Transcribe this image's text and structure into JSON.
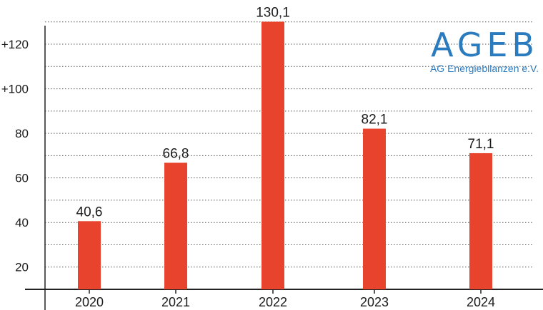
{
  "chart_data": {
    "type": "bar",
    "categories": [
      "2020",
      "2021",
      "2022",
      "2023",
      "2024"
    ],
    "values": [
      40.6,
      66.8,
      130.1,
      82.1,
      71.1
    ],
    "value_labels": [
      "40,6",
      "66,8",
      "130,1",
      "82,1",
      "71,1"
    ],
    "y_ticks": [
      20,
      40,
      60,
      80,
      100,
      120
    ],
    "y_tick_labels": [
      "20",
      "40",
      "60",
      "80",
      "+100",
      "+120"
    ],
    "ylim": [
      10,
      136
    ],
    "minor_grid_step": 10,
    "grid": true,
    "bar_color": "#e8432d",
    "title": "",
    "xlabel": "",
    "ylabel": ""
  },
  "logo": {
    "name": "AGEB",
    "subtitle": "AG Energiebilanzen e.V.",
    "color": "#2b7bbf"
  }
}
